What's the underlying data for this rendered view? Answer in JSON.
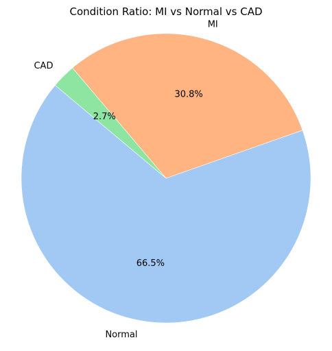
{
  "chart_data": {
    "type": "pie",
    "title": "Condition Ratio: MI vs Normal vs CAD",
    "slices": [
      {
        "label": "Normal",
        "value": 66.5,
        "pct_label": "66.5%",
        "color": "#a1c9f4"
      },
      {
        "label": "MI",
        "value": 30.8,
        "pct_label": "30.8%",
        "color": "#ffb482"
      },
      {
        "label": "CAD",
        "value": 2.7,
        "pct_label": "2.7%",
        "color": "#8de5a1"
      }
    ],
    "start_angle_deg": 140,
    "direction": "counterclockwise",
    "legend": "none"
  }
}
